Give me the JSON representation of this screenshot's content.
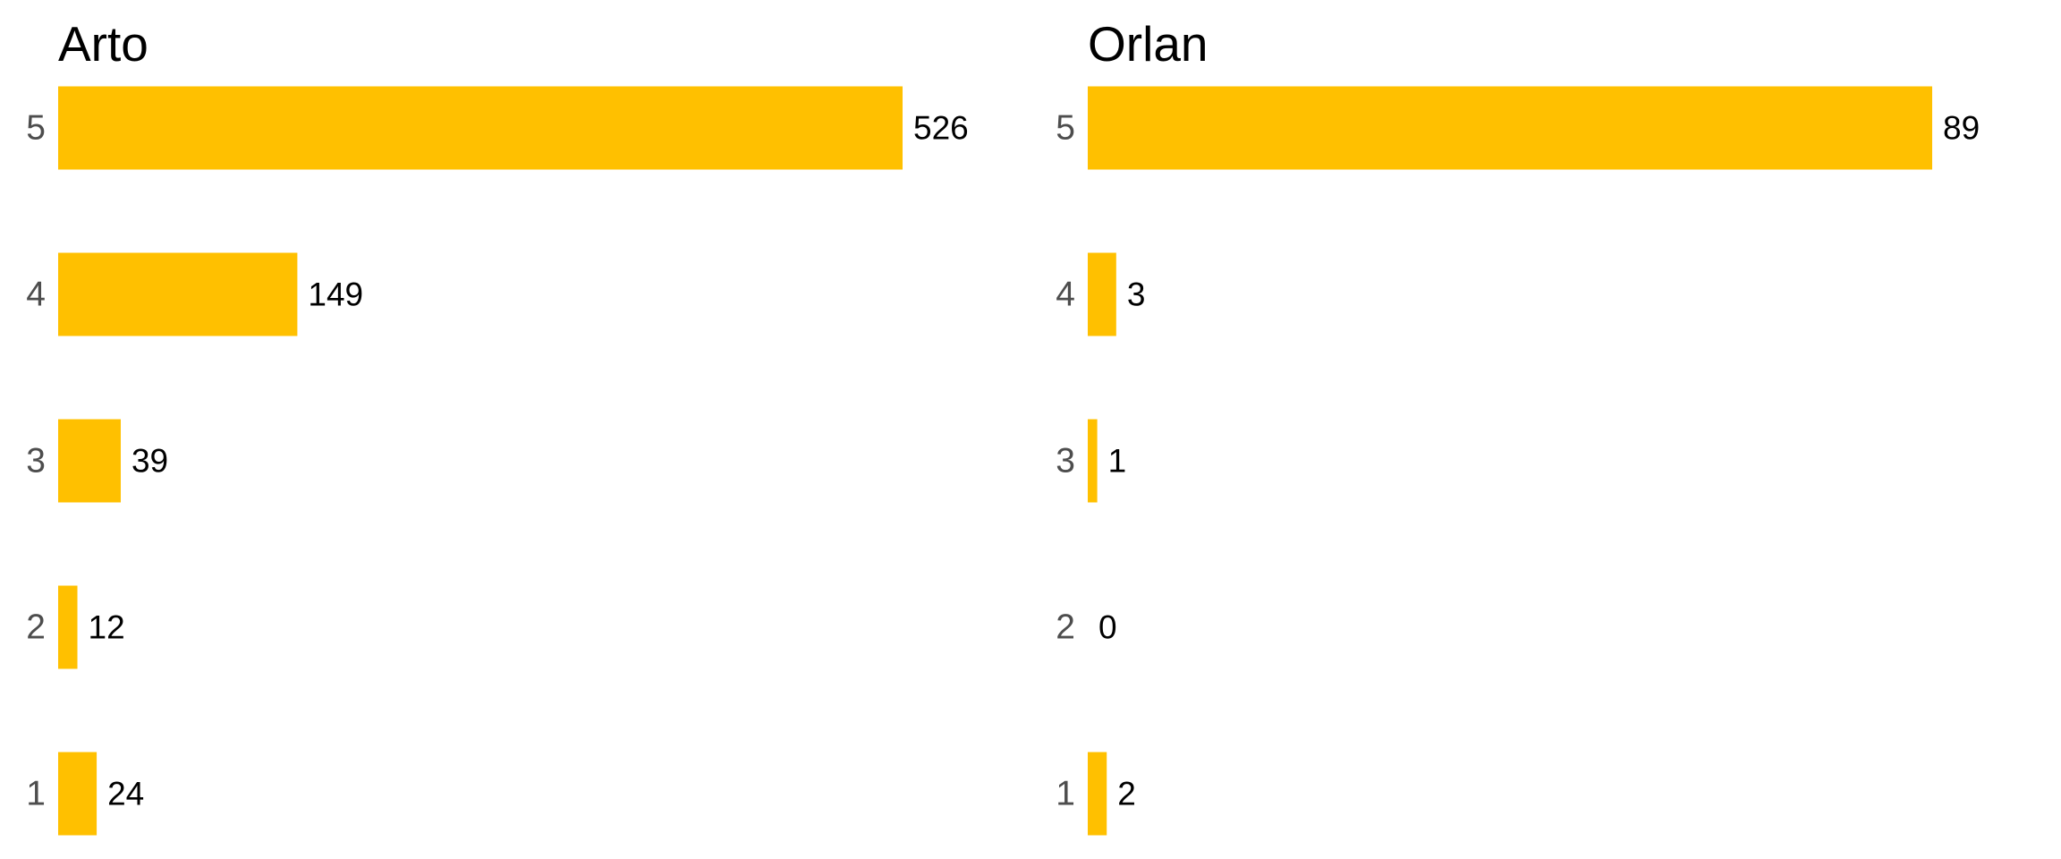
{
  "colors": {
    "bar": "#FFC000",
    "category_text": "#4D4D4D",
    "value_text": "#000000",
    "background": "#FFFFFF"
  },
  "chart_data": [
    {
      "type": "bar",
      "orientation": "horizontal",
      "title": "Arto",
      "categories": [
        "5",
        "4",
        "3",
        "2",
        "1"
      ],
      "values": [
        526,
        149,
        39,
        12,
        24
      ],
      "xlim": [
        0,
        526
      ],
      "grid": false,
      "legend": "none",
      "data_labels": true
    },
    {
      "type": "bar",
      "orientation": "horizontal",
      "title": "Orlan",
      "categories": [
        "5",
        "4",
        "3",
        "2",
        "1"
      ],
      "values": [
        89,
        3,
        1,
        0,
        2
      ],
      "xlim": [
        0,
        89
      ],
      "grid": false,
      "legend": "none",
      "data_labels": true
    }
  ]
}
